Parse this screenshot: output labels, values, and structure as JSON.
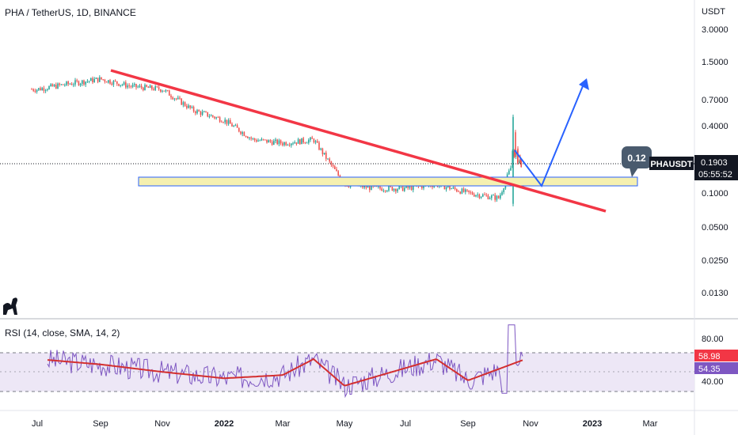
{
  "header": {
    "symbol_line": "PHA / TetherUS, 1D, BINANCE",
    "currency": "USDT"
  },
  "rsi_panel": {
    "title": "RSI (14, close, SMA, 14, 2)",
    "rsi_value": "58.98",
    "rsi_ma_value": "54.35",
    "upper_band": 70,
    "lower_band": 30,
    "rsi_color": "#7e57c2",
    "ma_color": "#d32f2f",
    "band_fill": "#ede7f6"
  },
  "price_labels": {
    "last_price": "0.1903",
    "countdown": "05:55:52",
    "ticker": "PHAUSDT",
    "callout": "0.12"
  },
  "colors": {
    "up": "#26a69a",
    "down": "#ef5350",
    "trendline": "#f23645",
    "projection": "#2962ff",
    "zone_fill": "#f5f0b0",
    "zone_border": "#2962ff",
    "callout_bg": "#4a5b6e"
  },
  "chart_data": {
    "type": "candlestick",
    "y_scale": "log",
    "ylabel": "USDT",
    "y_ticks": [
      "3.0000",
      "1.5000",
      "0.7000",
      "0.4000",
      "0.1000",
      "0.0500",
      "0.0250",
      "0.0130"
    ],
    "x_ticks": [
      "Jul",
      "Sep",
      "Nov",
      "2022",
      "Mar",
      "May",
      "Jul",
      "Sep",
      "Nov",
      "2023",
      "Mar"
    ],
    "rsi_ticks": [
      "80.00",
      "40.00"
    ],
    "price_path": [
      {
        "date": "Jul 2021",
        "close": 0.85
      },
      {
        "date": "Aug 2021",
        "close": 0.95
      },
      {
        "date": "Sep 2021",
        "close": 1.05
      },
      {
        "date": "Oct 2021",
        "close": 0.9
      },
      {
        "date": "Nov 2021",
        "close": 0.85
      },
      {
        "date": "Dec 2021",
        "close": 0.55
      },
      {
        "date": "Jan 2022",
        "close": 0.45
      },
      {
        "date": "Feb 2022",
        "close": 0.3
      },
      {
        "date": "Mar 2022",
        "close": 0.28
      },
      {
        "date": "Apr 2022",
        "close": 0.3
      },
      {
        "date": "May 2022",
        "close": 0.12
      },
      {
        "date": "Jun 2022",
        "close": 0.11
      },
      {
        "date": "Jul 2022",
        "close": 0.11
      },
      {
        "date": "Aug 2022",
        "close": 0.12
      },
      {
        "date": "Sep 2022",
        "close": 0.1
      },
      {
        "date": "Oct 2022",
        "close": 0.09
      },
      {
        "date": "Oct 2022 (spike)",
        "close": 0.19
      }
    ],
    "rsi_path": [
      {
        "date": "Jul 2021",
        "rsi": 60
      },
      {
        "date": "Sep 2021",
        "rsi": 55
      },
      {
        "date": "Nov 2021",
        "rsi": 48
      },
      {
        "date": "Jan 2022",
        "rsi": 42
      },
      {
        "date": "Mar 2022",
        "rsi": 45
      },
      {
        "date": "Apr 2022",
        "rsi": 60
      },
      {
        "date": "May 2022",
        "rsi": 35
      },
      {
        "date": "Aug 2022",
        "rsi": 60
      },
      {
        "date": "Sep 2022",
        "rsi": 40
      },
      {
        "date": "Oct 2022",
        "rsi": 58.98
      }
    ],
    "trendline": {
      "from": "Sep 2021",
      "to": "Feb 2023"
    },
    "support_zone": {
      "label": "0.12"
    },
    "projection": {
      "from": "Oct 2022",
      "via": "Nov 2022",
      "to": "Dec 2022"
    }
  }
}
